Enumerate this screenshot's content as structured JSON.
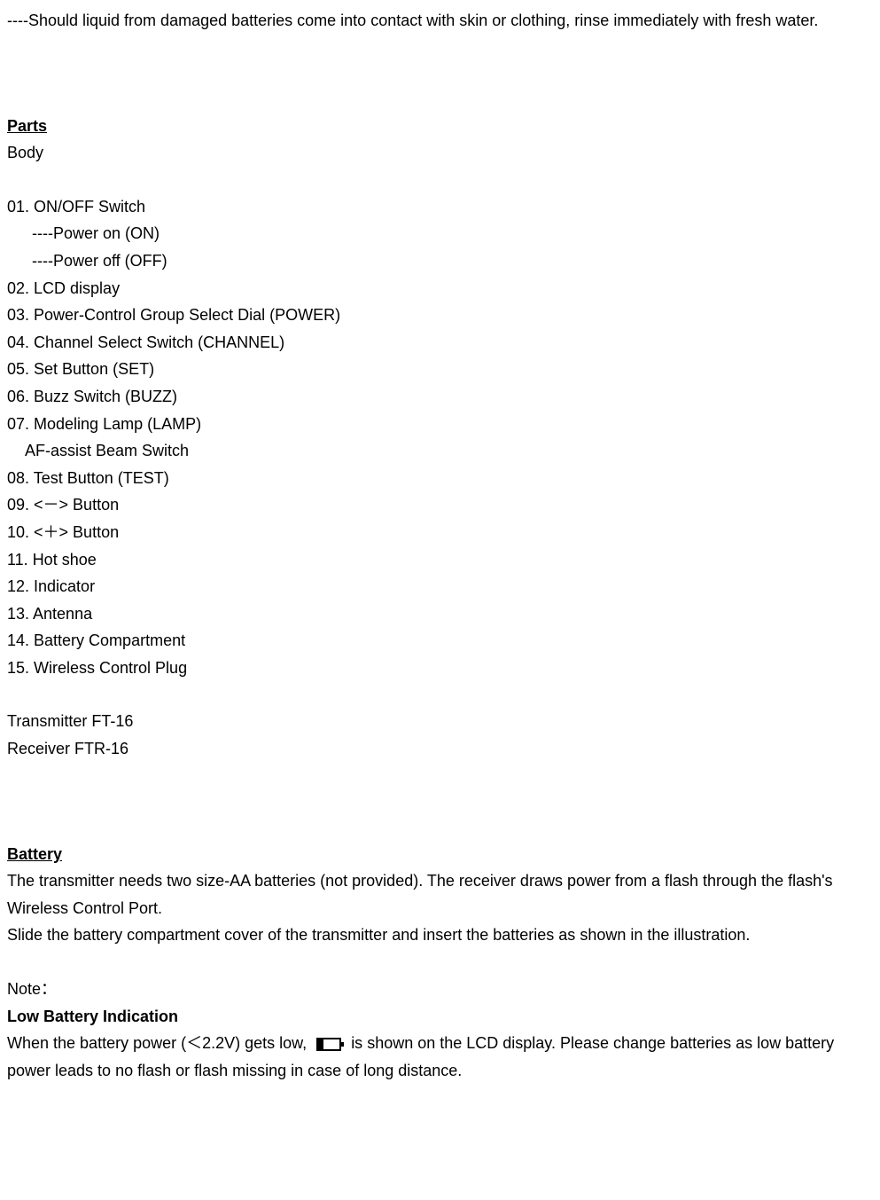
{
  "intro_text": "----Should liquid from damaged batteries come into contact with skin or clothing, rinse immediately with fresh water.",
  "parts": {
    "heading": "Parts",
    "body_label": "Body",
    "items": {
      "item01": "01. ON/OFF Switch",
      "item01_sub1": "----Power on (ON)",
      "item01_sub2": "----Power off (OFF)",
      "item02": "02. LCD display",
      "item03": "03. Power-Control Group Select Dial (POWER)",
      "item04": "04. Channel Select Switch (CHANNEL)",
      "item05": "05. Set Button (SET)",
      "item06": "06. Buzz Switch (BUZZ)",
      "item07": "07. Modeling Lamp (LAMP)",
      "item07_sub": "AF-assist Beam Switch",
      "item08": "08. Test Button (TEST)",
      "item09": "09. <－> Button",
      "item10": "10. <＋> Button",
      "item11": "11. Hot shoe",
      "item12": "12. Indicator",
      "item13": "13. Antenna",
      "item14": "14. Battery Compartment",
      "item15": "15. Wireless Control Plug"
    },
    "transmitter": "Transmitter FT-16",
    "receiver": "Receiver FTR-16"
  },
  "battery": {
    "heading": "Battery",
    "para1": "The transmitter needs two size-AA batteries (not provided). The receiver draws power from a flash through the flash's Wireless Control Port.",
    "para2": "Slide the battery compartment cover of the transmitter and insert the batteries as shown in the illustration.",
    "note_label": "Note：",
    "low_battery_heading": "Low Battery Indication",
    "low_battery_text_before": "When the battery power (＜2.2V) gets low, ",
    "low_battery_text_after": " is shown on the LCD display. Please change batteries as low battery power leads to no flash or flash missing in case of long distance."
  }
}
